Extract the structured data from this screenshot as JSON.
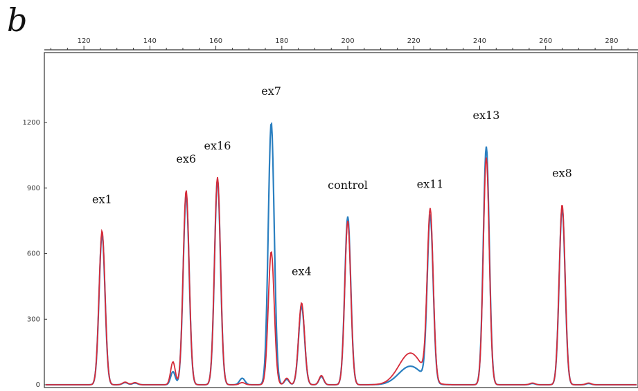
{
  "panel_letter": "b",
  "chart_data": {
    "type": "line",
    "x_ticks": [
      120,
      140,
      160,
      180,
      200,
      220,
      240,
      260,
      280
    ],
    "y_ticks": [
      "0",
      "300",
      "600",
      "900",
      "1200"
    ],
    "xlim": [
      108,
      288
    ],
    "ylim": [
      0,
      1520
    ],
    "grid": false,
    "colors": {
      "series_red": "#d62c3a",
      "series_blue": "#2a7fc0"
    },
    "peaks": [
      {
        "label": "ex1",
        "x": 125.5,
        "red": 705,
        "blue": 690,
        "width": 0.9
      },
      {
        "label": "ex6",
        "x": 151.0,
        "red": 890,
        "blue": 870,
        "width": 0.9
      },
      {
        "label": "ex16",
        "x": 160.5,
        "red": 950,
        "blue": 940,
        "width": 0.9
      },
      {
        "label": "ex7",
        "x": 176.8,
        "red": 610,
        "blue": 1200,
        "width": 0.9
      },
      {
        "label": "ex4",
        "x": 186.0,
        "red": 375,
        "blue": 360,
        "width": 0.9
      },
      {
        "label": "control",
        "x": 200.0,
        "red": 750,
        "blue": 770,
        "width": 0.9
      },
      {
        "label": "ex11",
        "x": 225.0,
        "red": 775,
        "blue": 760,
        "width": 0.9
      },
      {
        "label": "ex13",
        "x": 242.0,
        "red": 1040,
        "blue": 1090,
        "width": 0.9
      },
      {
        "label": "ex8",
        "x": 265.0,
        "red": 825,
        "blue": 810,
        "width": 0.9
      }
    ],
    "minor_peaks": [
      {
        "x": 132.5,
        "red": 12,
        "blue": 10,
        "width": 0.8
      },
      {
        "x": 135.5,
        "red": 10,
        "blue": 8,
        "width": 0.8
      },
      {
        "x": 147.0,
        "red": 105,
        "blue": 60,
        "width": 0.7
      },
      {
        "x": 168.0,
        "red": 10,
        "blue": 30,
        "width": 0.8
      },
      {
        "x": 181.5,
        "red": 30,
        "blue": 25,
        "width": 0.7
      },
      {
        "x": 192.0,
        "red": 42,
        "blue": 38,
        "width": 0.7
      },
      {
        "x": 256.0,
        "red": 8,
        "blue": 6,
        "width": 0.8
      },
      {
        "x": 273.0,
        "red": 8,
        "blue": 6,
        "width": 0.8
      }
    ],
    "broad_bump": {
      "x": 219.0,
      "red": 145,
      "blue": 85,
      "width": 3.5
    }
  }
}
